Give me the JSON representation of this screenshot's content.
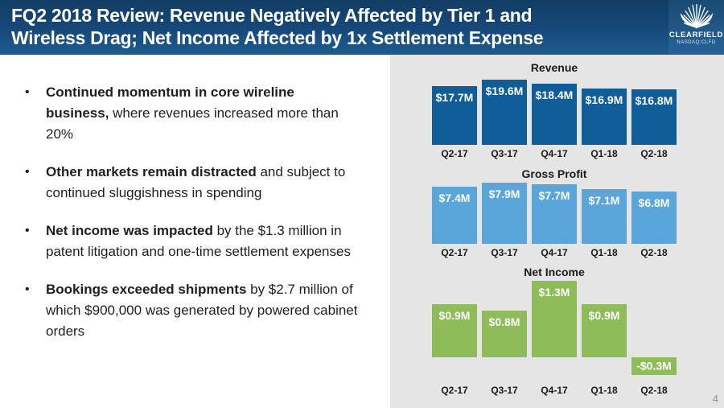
{
  "header": {
    "title": {
      "line1": "FQ2 2018 Review: Revenue Negatively Affected by Tier 1 and",
      "line2": "Wireless Drag; Net Income Affected by 1x Settlement Expense"
    },
    "logo": {
      "name": "CLEARFIELD",
      "ticker": "NASDAQ:CLFD"
    }
  },
  "bullets": [
    {
      "bold": "Continued momentum in core wireline business,",
      "rest": " where revenues increased more than 20%"
    },
    {
      "bold": "Other markets remain distracted",
      "rest": " and subject to continued sluggishness in spending"
    },
    {
      "bold": "Net income was impacted",
      "rest": " by the $1.3 million in patent litigation and one-time settlement expenses"
    },
    {
      "bold": "Bookings exceeded shipments",
      "rest": " by $2.7 million of which $900,000 was generated by powered cabinet orders"
    }
  ],
  "chart_data": [
    {
      "type": "bar",
      "title": "Revenue",
      "categories": [
        "Q2-17",
        "Q3-17",
        "Q4-17",
        "Q1-18",
        "Q2-18"
      ],
      "values": [
        17.7,
        19.6,
        18.4,
        16.9,
        16.8
      ],
      "labels": [
        "$17.7M",
        "$19.6M",
        "$18.4M",
        "$16.9M",
        "$16.8M"
      ],
      "unit": "USD millions",
      "bar_color": "#0f5e9a",
      "ylim": [
        0,
        19.6
      ],
      "grid": false,
      "legend": false
    },
    {
      "type": "bar",
      "title": "Gross Profit",
      "categories": [
        "Q2-17",
        "Q3-17",
        "Q4-17",
        "Q1-18",
        "Q2-18"
      ],
      "values": [
        7.4,
        7.9,
        7.7,
        7.1,
        6.8
      ],
      "labels": [
        "$7.4M",
        "$7.9M",
        "$7.7M",
        "$7.1M",
        "$6.8M"
      ],
      "unit": "USD millions",
      "bar_color": "#5aa6db",
      "ylim": [
        0,
        7.9
      ],
      "grid": false,
      "legend": false
    },
    {
      "type": "bar",
      "title": "Net Income",
      "categories": [
        "Q2-17",
        "Q3-17",
        "Q4-17",
        "Q1-18",
        "Q2-18"
      ],
      "values": [
        0.9,
        0.8,
        1.3,
        0.9,
        -0.3
      ],
      "labels": [
        "$0.9M",
        "$0.8M",
        "$1.3M",
        "$0.9M",
        "-$0.3M"
      ],
      "unit": "USD millions",
      "bar_color": "#8dbc59",
      "ylim": [
        -0.3,
        1.3
      ],
      "grid": false,
      "legend": false
    }
  ],
  "page_number": "4",
  "colors": {
    "header_gradient_top": "#123c63",
    "header_gradient_bottom": "#1d5c90",
    "panel_background": "#e5e5e5",
    "revenue_bar": "#0f5e9a",
    "gross_profit_bar": "#5aa6db",
    "net_income_bar": "#8dbc59",
    "bar_value_text": "#ffffff",
    "body_text": "#1f1f1f"
  }
}
